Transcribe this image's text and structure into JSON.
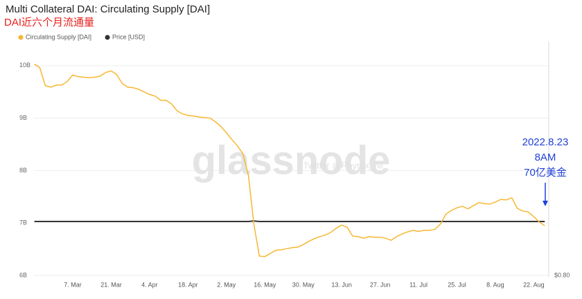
{
  "chart_data": {
    "type": "line",
    "title": "Multi Collateral DAI: Circulating Supply [DAI]",
    "subtitle": "DAI近六个月流通量",
    "watermark": "glassnode",
    "watermark_sub": "Twitter @Phyrex_Ni",
    "annotations": [
      "2022.8.23",
      "8AM",
      "70亿美金"
    ],
    "categories": [
      null,
      null,
      null,
      null,
      null,
      null,
      null,
      "7. Mar",
      null,
      null,
      null,
      null,
      null,
      null,
      "21. Mar",
      null,
      null,
      null,
      null,
      null,
      null,
      "4. Apr",
      null,
      null,
      null,
      null,
      null,
      null,
      "18. Apr",
      null,
      null,
      null,
      null,
      null,
      null,
      "2. May",
      null,
      null,
      null,
      null,
      null,
      null,
      "16. May",
      null,
      null,
      null,
      null,
      null,
      null,
      "30. May",
      null,
      null,
      null,
      null,
      null,
      null,
      "13. Jun",
      null,
      null,
      null,
      null,
      null,
      null,
      "27. Jun",
      null,
      null,
      null,
      null,
      null,
      null,
      "11. Jul",
      null,
      null,
      null,
      null,
      null,
      null,
      "25. Jul",
      null,
      null,
      null,
      null,
      null,
      null,
      "8. Aug",
      null,
      null,
      null,
      null,
      null,
      null,
      "22. Aug",
      null,
      null
    ],
    "series": [
      {
        "name": "Circulating Supply [DAI]",
        "color": "#f7b731",
        "axis": "y",
        "values": [
          10.03,
          9.96,
          9.62,
          9.59,
          9.63,
          9.63,
          9.7,
          9.82,
          9.79,
          9.78,
          9.77,
          9.78,
          9.8,
          9.87,
          9.9,
          9.83,
          9.66,
          9.59,
          9.58,
          9.55,
          9.5,
          9.45,
          9.42,
          9.34,
          9.34,
          9.27,
          9.14,
          9.08,
          9.05,
          9.04,
          9.02,
          9.01,
          9.0,
          8.93,
          8.84,
          8.72,
          8.59,
          8.47,
          8.32,
          7.91,
          6.98,
          6.37,
          6.36,
          6.42,
          6.48,
          6.49,
          6.51,
          6.53,
          6.54,
          6.59,
          6.65,
          6.7,
          6.74,
          6.77,
          6.82,
          6.9,
          6.96,
          6.92,
          6.75,
          6.74,
          6.71,
          6.74,
          6.73,
          6.73,
          6.71,
          6.67,
          6.74,
          6.79,
          6.83,
          6.86,
          6.84,
          6.86,
          6.86,
          6.88,
          6.98,
          7.17,
          7.24,
          7.29,
          7.32,
          7.27,
          7.33,
          7.39,
          7.37,
          7.36,
          7.4,
          7.45,
          7.44,
          7.48,
          7.28,
          7.23,
          7.21,
          7.12,
          7.02,
          6.95
        ]
      },
      {
        "name": "Price [USD]",
        "color": "#333333",
        "axis": "y2",
        "values": [
          1,
          1,
          1,
          1,
          1,
          1,
          1,
          1,
          1,
          1,
          1,
          1,
          1,
          1,
          1,
          1,
          1,
          1,
          1,
          1,
          1,
          1,
          1,
          1,
          1,
          1,
          1,
          1,
          1,
          1,
          1,
          1,
          1,
          1,
          1,
          1,
          1,
          1,
          1,
          1,
          1.002,
          1,
          1,
          1,
          1,
          1,
          1,
          1,
          1,
          1,
          1,
          1,
          1,
          1,
          1,
          1,
          1,
          1,
          1,
          1,
          1,
          1,
          1,
          1,
          1,
          1,
          1,
          1,
          1,
          1,
          1,
          1,
          1,
          1,
          1,
          1,
          1,
          1,
          1,
          1,
          1,
          1,
          1,
          1,
          1,
          1,
          1,
          1,
          1,
          1,
          1,
          1,
          1,
          1
        ]
      }
    ],
    "ylim": [
      6,
      10.46
    ],
    "yticks": [
      {
        "value": 6,
        "label": "6B"
      },
      {
        "value": 7,
        "label": "7B"
      },
      {
        "value": 8,
        "label": "8B"
      },
      {
        "value": 9,
        "label": "9B"
      },
      {
        "value": 10,
        "label": "10B"
      }
    ],
    "y2lim": [
      0.8,
      1.667
    ],
    "y2ticks": [
      {
        "value": 0.8,
        "label": "$0.80"
      }
    ],
    "grid": true,
    "legend": "top-left"
  }
}
